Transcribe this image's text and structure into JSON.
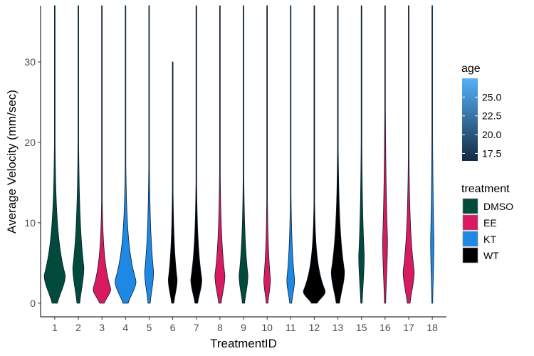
{
  "chart_data": {
    "type": "violin",
    "xlabel": "TreatmentID",
    "ylabel": "Average Velocity (mm/sec)",
    "ylim": [
      -1.7,
      37
    ],
    "yticks": [
      "0",
      "10",
      "20",
      "30"
    ],
    "categories": [
      "1",
      "2",
      "3",
      "4",
      "5",
      "6",
      "7",
      "8",
      "9",
      "10",
      "11",
      "12",
      "13",
      "15",
      "16",
      "17",
      "18"
    ],
    "violins": [
      {
        "id": "1",
        "treatment": "DMSO",
        "max": 37,
        "mode": 3.5,
        "width": 0.95
      },
      {
        "id": "2",
        "treatment": "DMSO",
        "max": 37,
        "mode": 4.5,
        "width": 0.5
      },
      {
        "id": "3",
        "treatment": "EE",
        "max": 37,
        "mode": 1.8,
        "width": 0.8
      },
      {
        "id": "4",
        "treatment": "KT",
        "max": 37,
        "mode": 2.8,
        "width": 0.95
      },
      {
        "id": "5",
        "treatment": "KT",
        "max": 37,
        "mode": 4.0,
        "width": 0.4
      },
      {
        "id": "6",
        "treatment": "WT",
        "max": 30,
        "mode": 3.0,
        "width": 0.4
      },
      {
        "id": "7",
        "treatment": "WT",
        "max": 37,
        "mode": 3.0,
        "width": 0.5
      },
      {
        "id": "8",
        "treatment": "EE",
        "max": 37,
        "mode": 3.5,
        "width": 0.45
      },
      {
        "id": "9",
        "treatment": "DMSO",
        "max": 37,
        "mode": 3.5,
        "width": 0.4
      },
      {
        "id": "10",
        "treatment": "EE",
        "max": 37,
        "mode": 3.0,
        "width": 0.3
      },
      {
        "id": "11",
        "treatment": "KT",
        "max": 37,
        "mode": 3.0,
        "width": 0.35
      },
      {
        "id": "12",
        "treatment": "WT",
        "max": 37,
        "mode": 1.5,
        "width": 1.0
      },
      {
        "id": "13",
        "treatment": "WT",
        "max": 37,
        "mode": 4.0,
        "width": 0.6
      },
      {
        "id": "15",
        "treatment": "DMSO",
        "max": 37,
        "mode": 6.0,
        "width": 0.25
      },
      {
        "id": "16",
        "treatment": "EE",
        "max": 37,
        "mode": 8.0,
        "width": 0.22
      },
      {
        "id": "17",
        "treatment": "EE",
        "max": 37,
        "mode": 4.0,
        "width": 0.5
      },
      {
        "id": "18",
        "treatment": "KT",
        "max": 37,
        "mode": 8.0,
        "width": 0.15
      }
    ],
    "legend_age": {
      "title": "age",
      "range": [
        16.5,
        27.5
      ],
      "ticks": [
        "25.0",
        "22.5",
        "20.0",
        "17.5"
      ],
      "tick_values": [
        25.0,
        22.5,
        20.0,
        17.5
      ],
      "colors": [
        "#132B43",
        "#56B1F7"
      ]
    },
    "legend_treatment": {
      "title": "treatment",
      "items": [
        {
          "label": "DMSO",
          "color": "#024a3c"
        },
        {
          "label": "EE",
          "color": "#d81b60"
        },
        {
          "label": "KT",
          "color": "#1e88e5"
        },
        {
          "label": "WT",
          "color": "#000000"
        }
      ]
    },
    "legend_position": "right",
    "grid": false
  }
}
